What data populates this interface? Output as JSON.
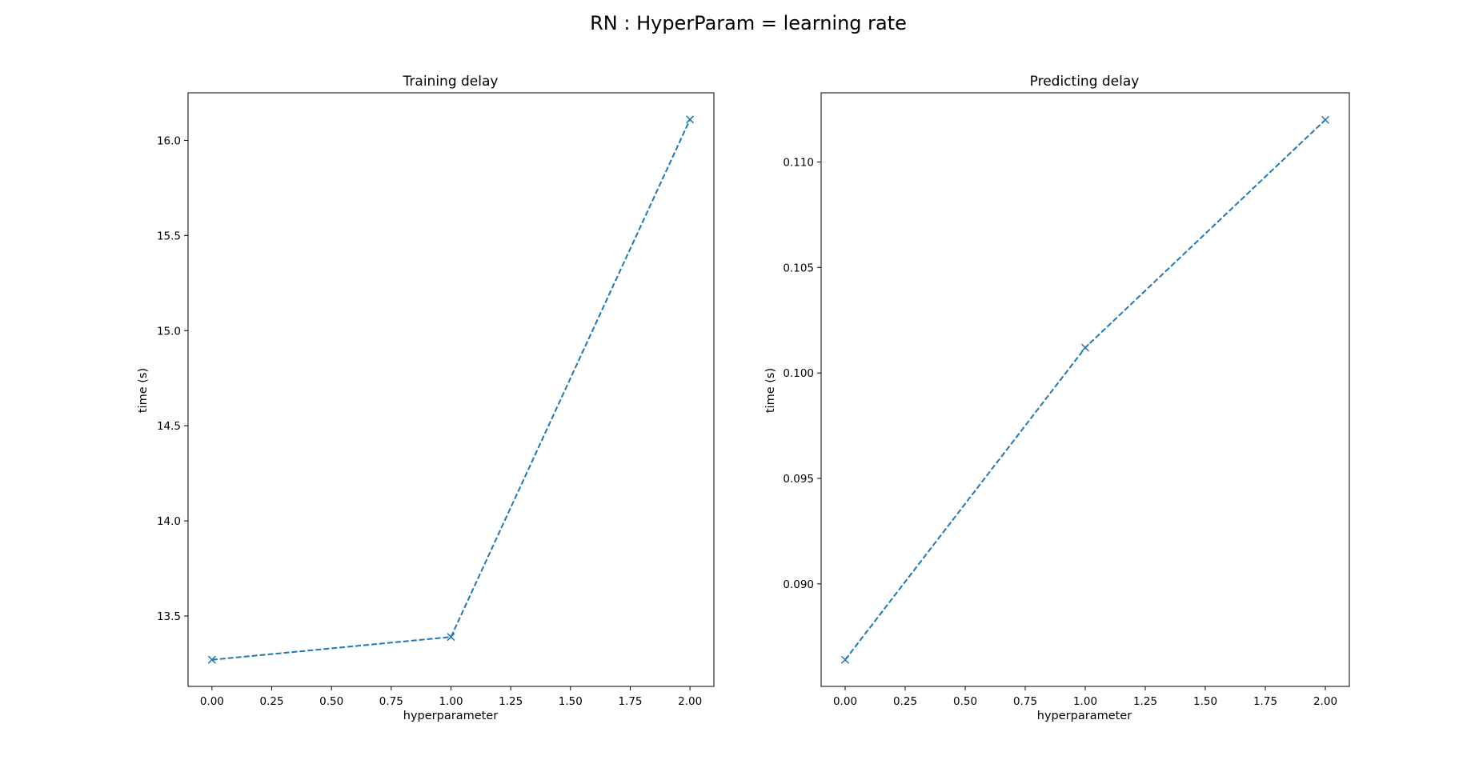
{
  "figure": {
    "suptitle": "RN : HyperParam = learning rate"
  },
  "chart_data": [
    {
      "type": "line",
      "title": "Training delay",
      "xlabel": "hyperparameter",
      "ylabel": "time (s)",
      "x": [
        0,
        1,
        2
      ],
      "series": [
        {
          "values": [
            13.27,
            13.39,
            16.11
          ],
          "color": "#1f77b4",
          "linestyle": "dashed",
          "marker": "x"
        }
      ],
      "xlim": [
        -0.1,
        2.1
      ],
      "ylim": [
        13.13,
        16.25
      ],
      "xticks": [
        0.0,
        0.25,
        0.5,
        0.75,
        1.0,
        1.25,
        1.5,
        1.75,
        2.0
      ],
      "xtick_labels": [
        "0.00",
        "0.25",
        "0.50",
        "0.75",
        "1.00",
        "1.25",
        "1.50",
        "1.75",
        "2.00"
      ],
      "yticks": [
        13.5,
        14.0,
        14.5,
        15.0,
        15.5,
        16.0
      ],
      "ytick_labels": [
        "13.5",
        "14.0",
        "14.5",
        "15.0",
        "15.5",
        "16.0"
      ],
      "grid": false
    },
    {
      "type": "line",
      "title": "Predicting delay",
      "xlabel": "hyperparameter",
      "ylabel": "time (s)",
      "x": [
        0,
        1,
        2
      ],
      "series": [
        {
          "values": [
            0.0864,
            0.1012,
            0.112
          ],
          "color": "#1f77b4",
          "linestyle": "dashed",
          "marker": "x"
        }
      ],
      "xlim": [
        -0.1,
        2.1
      ],
      "ylim": [
        0.08514,
        0.11328
      ],
      "xticks": [
        0.0,
        0.25,
        0.5,
        0.75,
        1.0,
        1.25,
        1.5,
        1.75,
        2.0
      ],
      "xtick_labels": [
        "0.00",
        "0.25",
        "0.50",
        "0.75",
        "1.00",
        "1.25",
        "1.50",
        "1.75",
        "2.00"
      ],
      "yticks": [
        0.09,
        0.095,
        0.1,
        0.105,
        0.11
      ],
      "ytick_labels": [
        "0.090",
        "0.095",
        "0.100",
        "0.105",
        "0.110"
      ],
      "grid": false
    }
  ]
}
